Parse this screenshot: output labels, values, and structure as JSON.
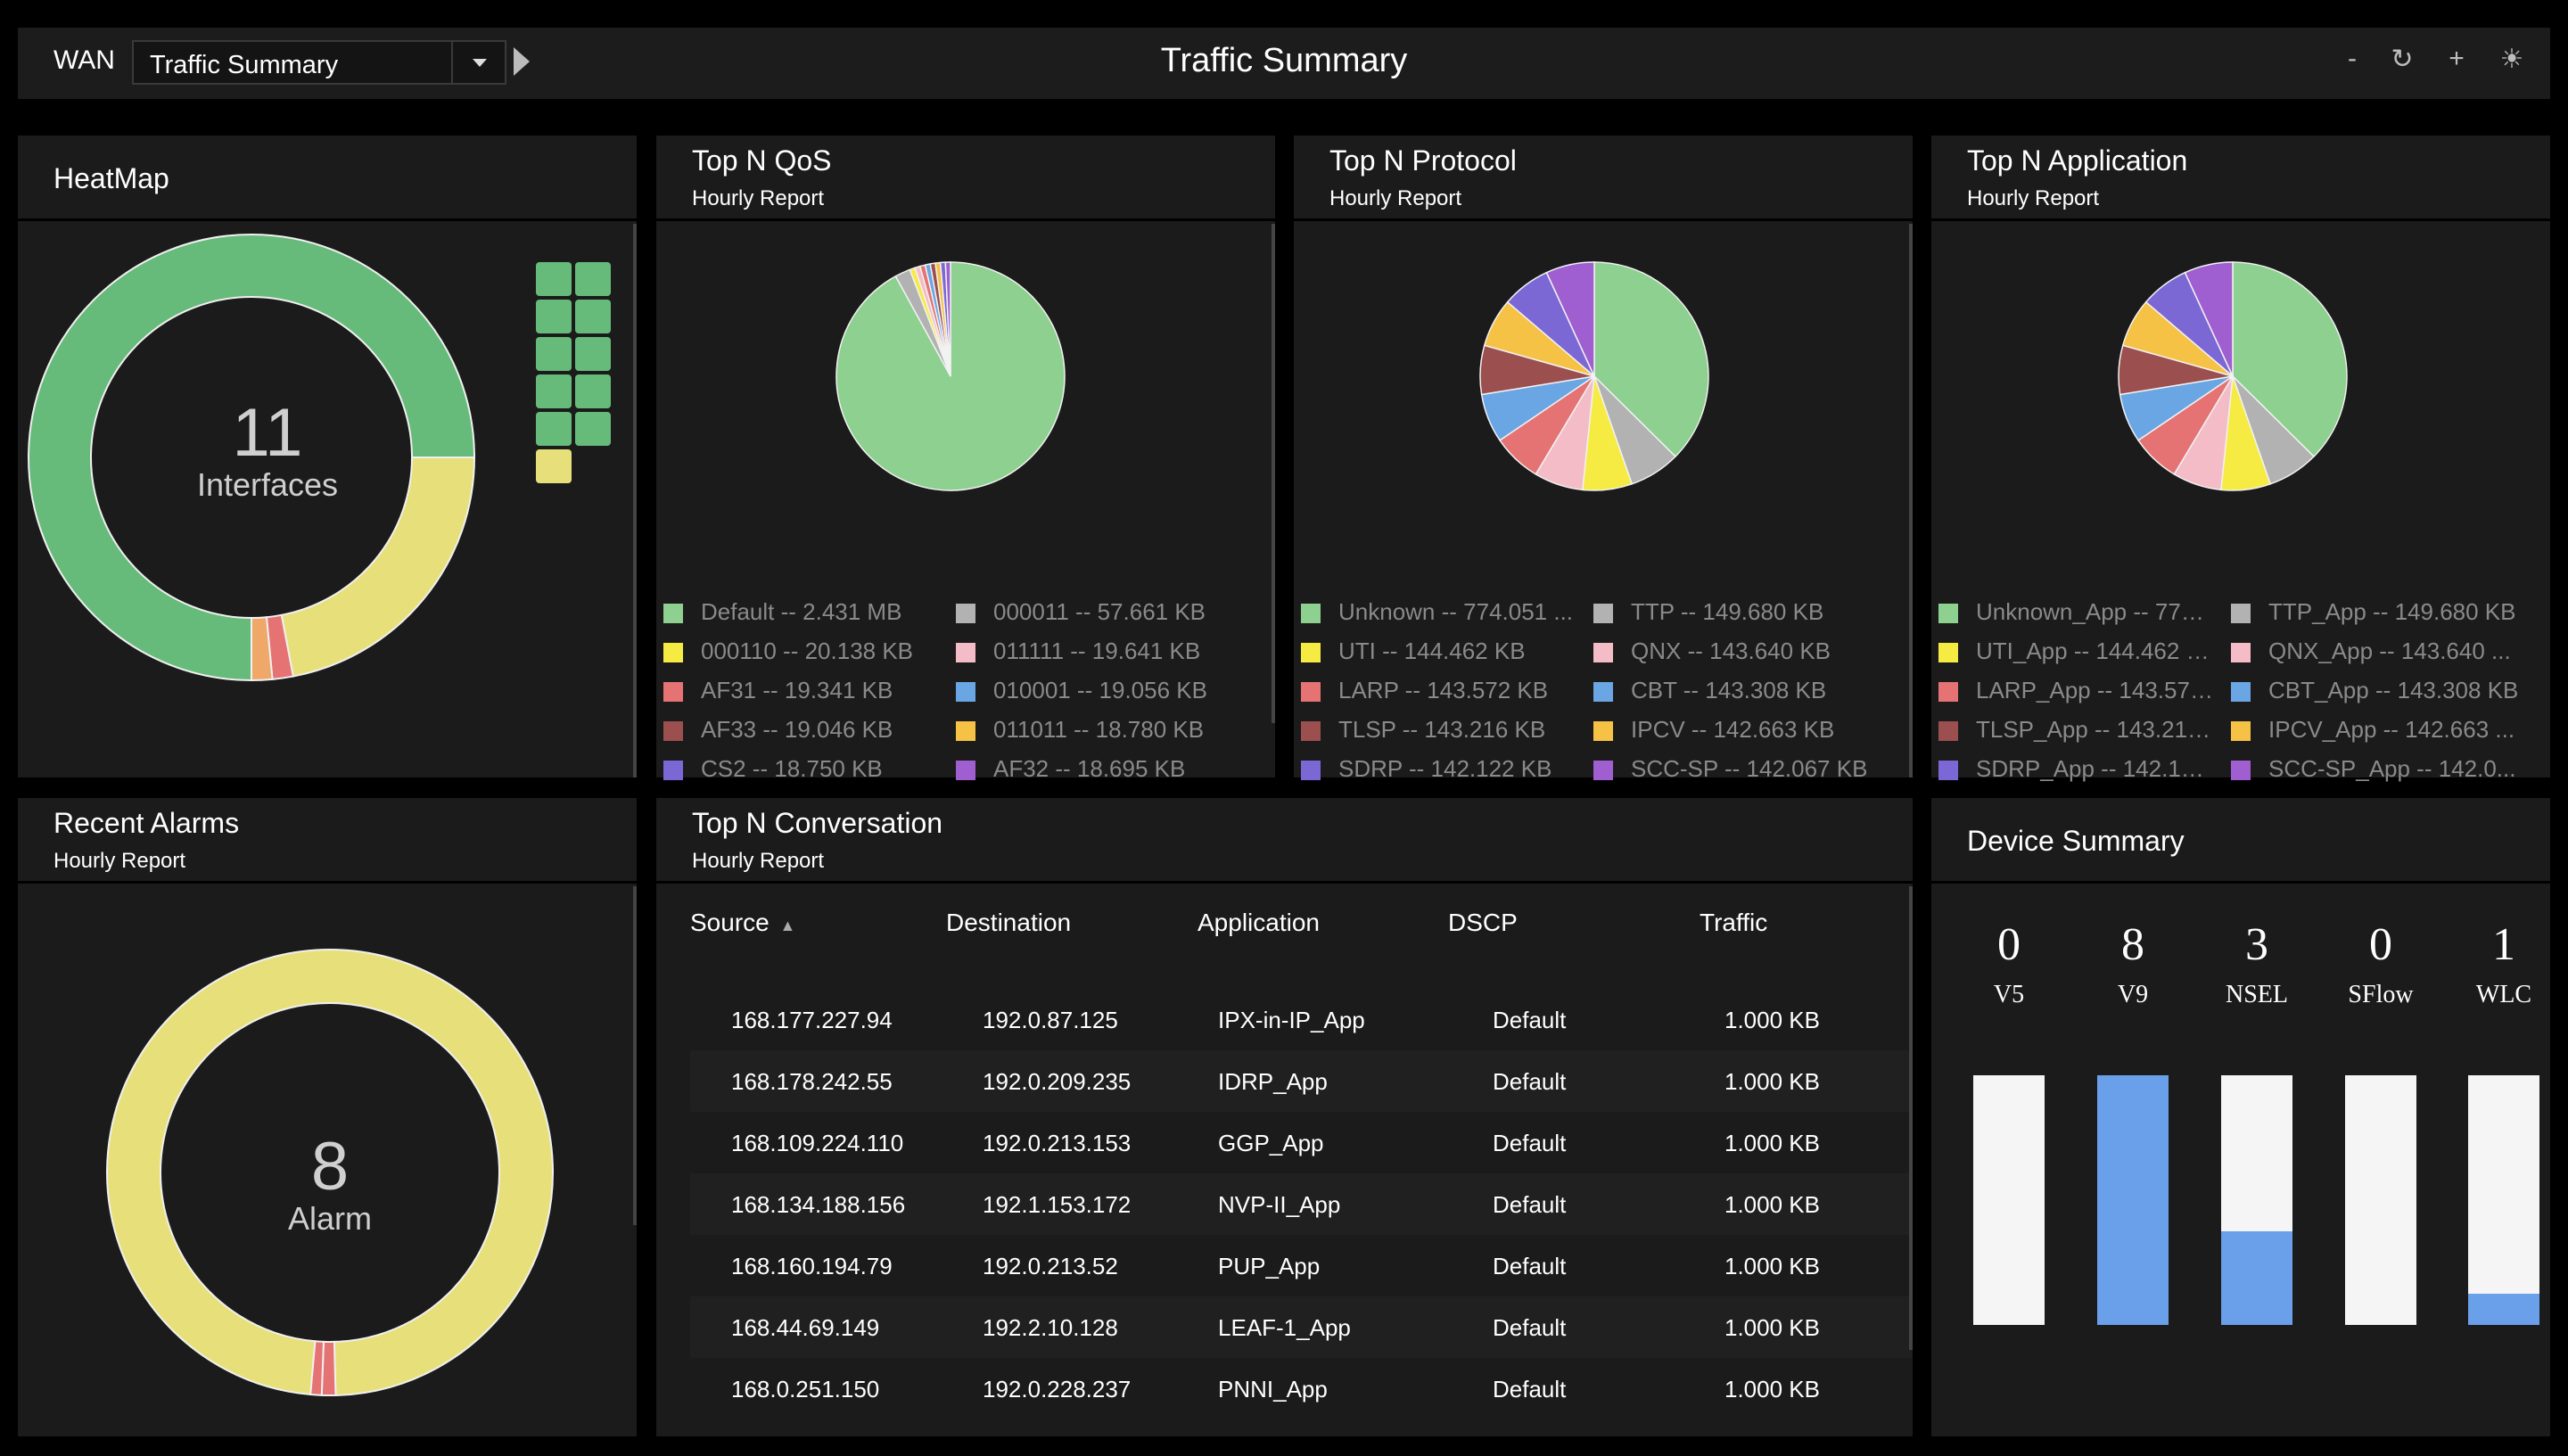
{
  "header": {
    "scope_label": "WAN",
    "view_select": {
      "value": "Traffic Summary"
    },
    "title": "Traffic Summary",
    "icons": [
      "minimize-icon",
      "refresh-icon",
      "add-icon",
      "theme-icon"
    ]
  },
  "colors": {
    "green": "#8dd08f",
    "yellow": "#f6eb43",
    "red": "#e57373",
    "brown": "#9c4f4f",
    "indigo": "#7b68d5",
    "gray": "#b2b2b2",
    "pink": "#f4bcc6",
    "blue": "#6aa6e3",
    "orange": "#f6c246",
    "purple": "#a05fd0",
    "heat_green": "#66bb7a",
    "heat_yellow": "#e7e07a"
  },
  "heatmap": {
    "title": "HeatMap",
    "center_value": "11",
    "center_label": "Interfaces",
    "chart_data": {
      "type": "pie",
      "slices": [
        {
          "value": 75
        },
        {
          "value": 22
        },
        {
          "value": 1.5
        },
        {
          "value": 1.5
        }
      ]
    }
  },
  "qos": {
    "title": "Top N QoS",
    "subtitle": "Hourly Report",
    "legend": [
      {
        "text": "Default -- 2.431 MB",
        "color": "green"
      },
      {
        "text": "000110 -- 20.138 KB",
        "color": "yellow"
      },
      {
        "text": "AF31 -- 19.341 KB",
        "color": "red"
      },
      {
        "text": "AF33 -- 19.046 KB",
        "color": "brown"
      },
      {
        "text": "CS2 -- 18.750 KB",
        "color": "indigo"
      },
      {
        "text": "000011 -- 57.661 KB",
        "color": "gray"
      },
      {
        "text": "011111 -- 19.641 KB",
        "color": "pink"
      },
      {
        "text": "010001 -- 19.056 KB",
        "color": "blue"
      },
      {
        "text": "011011 -- 18.780 KB",
        "color": "orange"
      },
      {
        "text": "AF32 -- 18.695 KB",
        "color": "purple"
      }
    ],
    "chart_data": {
      "type": "pie",
      "values": [
        2431,
        57.661,
        20.138,
        19.641,
        19.341,
        19.056,
        19.046,
        18.78,
        18.75,
        18.695
      ],
      "colors": [
        "green",
        "gray",
        "yellow",
        "pink",
        "red",
        "blue",
        "brown",
        "orange",
        "indigo",
        "purple"
      ]
    }
  },
  "protocol": {
    "title": "Top N Protocol",
    "subtitle": "Hourly Report",
    "legend": [
      {
        "text": "Unknown -- 774.051 ...",
        "color": "green"
      },
      {
        "text": "UTI -- 144.462 KB",
        "color": "yellow"
      },
      {
        "text": "LARP -- 143.572 KB",
        "color": "red"
      },
      {
        "text": "TLSP -- 143.216 KB",
        "color": "brown"
      },
      {
        "text": "SDRP -- 142.122 KB",
        "color": "indigo"
      },
      {
        "text": "TTP -- 149.680 KB",
        "color": "gray"
      },
      {
        "text": "QNX -- 143.640 KB",
        "color": "pink"
      },
      {
        "text": "CBT -- 143.308 KB",
        "color": "blue"
      },
      {
        "text": "IPCV -- 142.663 KB",
        "color": "orange"
      },
      {
        "text": "SCC-SP -- 142.067 KB",
        "color": "purple"
      }
    ],
    "chart_data": {
      "type": "pie",
      "values": [
        774.051,
        149.68,
        144.462,
        143.64,
        143.572,
        143.308,
        143.216,
        142.663,
        142.122,
        142.067
      ],
      "colors": [
        "green",
        "gray",
        "yellow",
        "pink",
        "red",
        "blue",
        "brown",
        "orange",
        "indigo",
        "purple"
      ]
    }
  },
  "application": {
    "title": "Top N Application",
    "subtitle": "Hourly Report",
    "legend": [
      {
        "text": "Unknown_App -- 774....",
        "color": "green"
      },
      {
        "text": "UTI_App -- 144.462 KB",
        "color": "yellow"
      },
      {
        "text": "LARP_App -- 143.572...",
        "color": "red"
      },
      {
        "text": "TLSP_App -- 143.216 ...",
        "color": "brown"
      },
      {
        "text": "SDRP_App -- 142.122...",
        "color": "indigo"
      },
      {
        "text": "TTP_App -- 149.680 KB",
        "color": "gray"
      },
      {
        "text": "QNX_App -- 143.640 ...",
        "color": "pink"
      },
      {
        "text": "CBT_App -- 143.308 KB",
        "color": "blue"
      },
      {
        "text": "IPCV_App -- 142.663 ...",
        "color": "orange"
      },
      {
        "text": "SCC-SP_App -- 142.0...",
        "color": "purple"
      }
    ],
    "chart_data": {
      "type": "pie",
      "values": [
        774.051,
        149.68,
        144.462,
        143.64,
        143.572,
        143.308,
        143.216,
        142.663,
        142.122,
        142.067
      ],
      "colors": [
        "green",
        "gray",
        "yellow",
        "pink",
        "red",
        "blue",
        "brown",
        "orange",
        "indigo",
        "purple"
      ]
    }
  },
  "alarms": {
    "title": "Recent Alarms",
    "subtitle": "Hourly Report",
    "center_value": "8",
    "center_label": "Alarm",
    "chart_data": {
      "type": "pie",
      "slices": [
        {
          "value": 98.2
        },
        {
          "value": 1.0
        },
        {
          "value": 0.8
        }
      ]
    }
  },
  "conversation": {
    "title": "Top N Conversation",
    "subtitle": "Hourly Report",
    "columns": [
      "Source",
      "Destination",
      "Application",
      "DSCP",
      "Traffic"
    ],
    "sorted_column": "Source",
    "rows": [
      [
        "168.177.227.94",
        "192.0.87.125",
        "IPX-in-IP_App",
        "Default",
        "1.000 KB"
      ],
      [
        "168.178.242.55",
        "192.0.209.235",
        "IDRP_App",
        "Default",
        "1.000 KB"
      ],
      [
        "168.109.224.110",
        "192.0.213.153",
        "GGP_App",
        "Default",
        "1.000 KB"
      ],
      [
        "168.134.188.156",
        "192.1.153.172",
        "NVP-II_App",
        "Default",
        "1.000 KB"
      ],
      [
        "168.160.194.79",
        "192.0.213.52",
        "PUP_App",
        "Default",
        "1.000 KB"
      ],
      [
        "168.44.69.149",
        "192.2.10.128",
        "LEAF-1_App",
        "Default",
        "1.000 KB"
      ],
      [
        "168.0.251.150",
        "192.0.228.237",
        "PNNI_App",
        "Default",
        "1.000 KB"
      ]
    ]
  },
  "devices": {
    "title": "Device Summary",
    "items": [
      {
        "count": "0",
        "label": "V5",
        "fill_fraction": 0
      },
      {
        "count": "8",
        "label": "V9",
        "fill_fraction": 1
      },
      {
        "count": "3",
        "label": "NSEL",
        "fill_fraction": 0.375
      },
      {
        "count": "0",
        "label": "SFlow",
        "fill_fraction": 0
      },
      {
        "count": "1",
        "label": "WLC",
        "fill_fraction": 0.125
      }
    ]
  }
}
